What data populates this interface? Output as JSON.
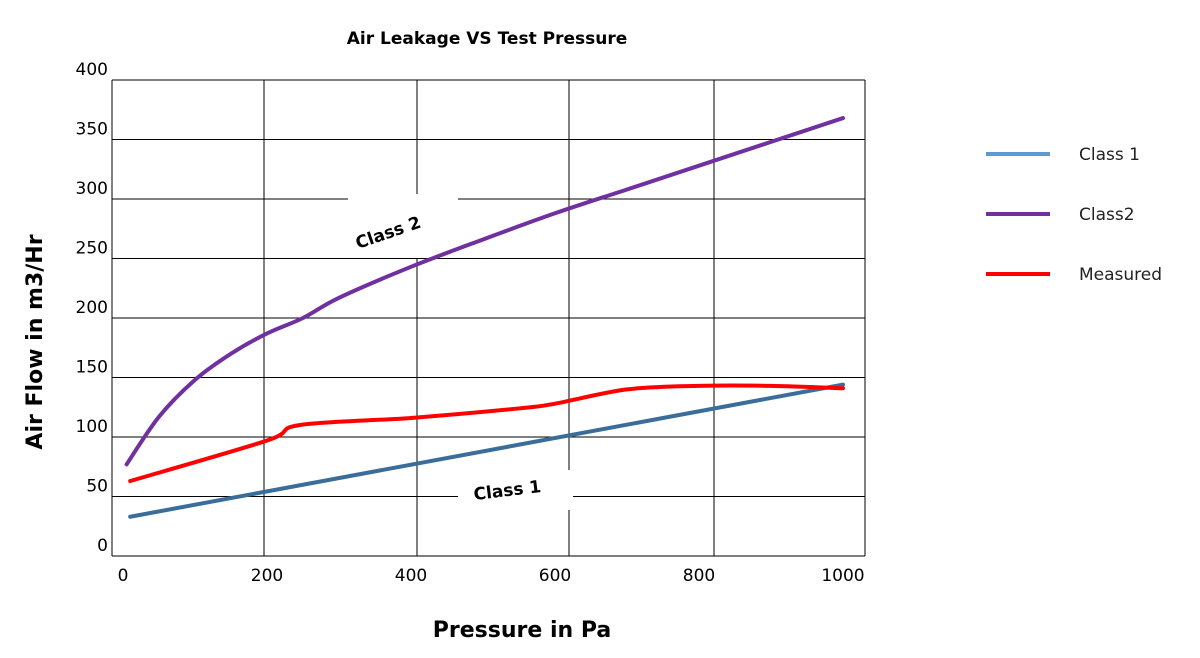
{
  "chart_data": {
    "type": "line",
    "title": "Air Leakage VS Test Pressure",
    "xlabel": "Pressure in Pa",
    "ylabel": "Air Flow in m3/Hr",
    "xlim": [
      0,
      1000
    ],
    "ylim": [
      0,
      400
    ],
    "grid": true,
    "legend_position": "right",
    "x_ticks": [
      0,
      200,
      400,
      600,
      800,
      1000
    ],
    "y_ticks": [
      0,
      50,
      100,
      150,
      200,
      250,
      300,
      350,
      400
    ],
    "x_tick_labels": [
      "0",
      "200",
      "400",
      "600",
      "800",
      "1000"
    ],
    "y_tick_labels": [
      "0",
      "50",
      "100",
      "150",
      "200",
      "250",
      "300",
      "350",
      "400"
    ],
    "series": [
      {
        "name": "Class 1",
        "color": "#3a6d9a",
        "legend_color": "#5b9bd5",
        "x": [
          10,
          200,
          400,
          600,
          800,
          1000
        ],
        "y": [
          33,
          55,
          78,
          100,
          122,
          144
        ]
      },
      {
        "name": "Class2",
        "color": "#7030a0",
        "legend_color": "#7030a0",
        "x": [
          5,
          50,
          100,
          150,
          200,
          250,
          300,
          400,
          500,
          600,
          700,
          800,
          900,
          1000
        ],
        "y": [
          77,
          117,
          148,
          170,
          187,
          200,
          217,
          243,
          266,
          288,
          308,
          328,
          348,
          368
        ]
      },
      {
        "name": "Measured",
        "color": "#ff0000",
        "legend_color": "#ff0000",
        "x": [
          10,
          200,
          245,
          400,
          550,
          600,
          700,
          800,
          900,
          1000
        ],
        "y": [
          63,
          97,
          110,
          116,
          124,
          128,
          140,
          143,
          143,
          141
        ]
      }
    ],
    "annotations": [
      {
        "text": "Class 2",
        "series": "Class2"
      },
      {
        "text": "Class 1",
        "series": "Class 1"
      }
    ]
  }
}
